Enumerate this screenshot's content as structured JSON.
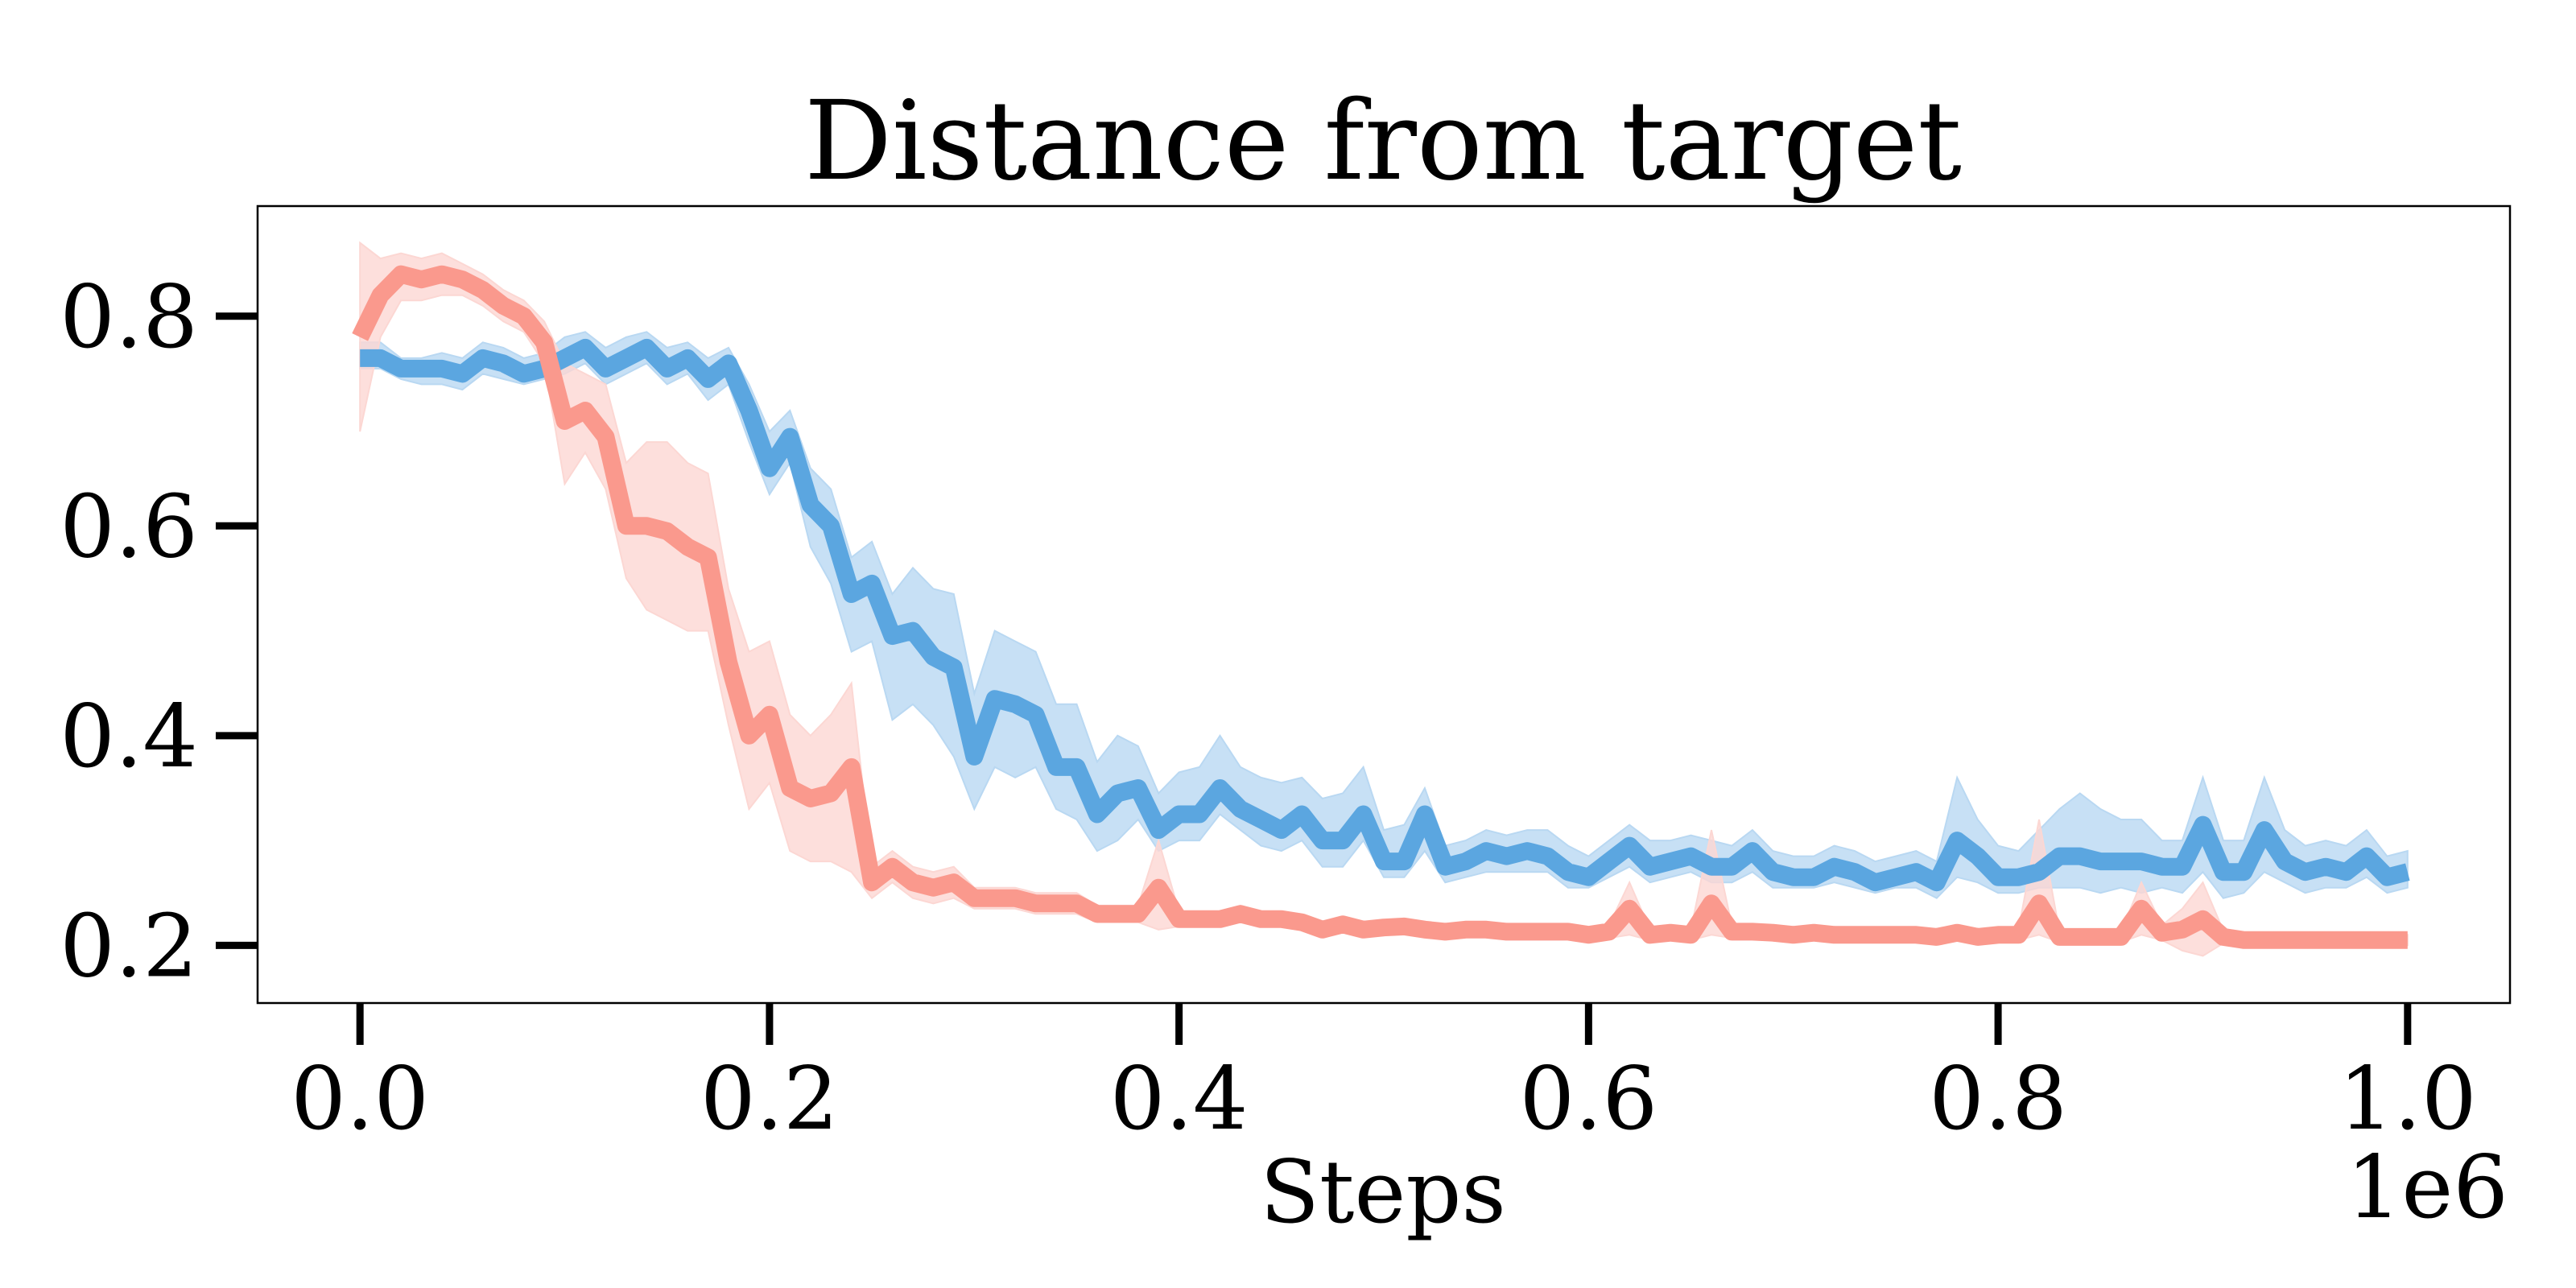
{
  "chart_data": {
    "type": "line",
    "title": "Distance from target",
    "xlabel": "Steps",
    "ylabel": "",
    "x_offset_text": "1e6",
    "xlim": [
      -0.05,
      1.05
    ],
    "ylim": [
      0.145,
      0.905
    ],
    "xticks": [
      0.0,
      0.2,
      0.4,
      0.6,
      0.8,
      1.0
    ],
    "xtick_labels": [
      "0.0",
      "0.2",
      "0.4",
      "0.6",
      "0.8",
      "1.0"
    ],
    "yticks": [
      0.2,
      0.4,
      0.6,
      0.8
    ],
    "ytick_labels": [
      "0.2",
      "0.4",
      "0.6",
      "0.8"
    ],
    "grid": false,
    "legend": "none",
    "series": [
      {
        "color": "#5ba6e0",
        "band_color": "#b9d8f2",
        "x": [
          0.0,
          0.01,
          0.02,
          0.03,
          0.04,
          0.05,
          0.06,
          0.07,
          0.08,
          0.09,
          0.1,
          0.11,
          0.12,
          0.13,
          0.14,
          0.15,
          0.16,
          0.17,
          0.18,
          0.19,
          0.2,
          0.21,
          0.22,
          0.23,
          0.24,
          0.25,
          0.26,
          0.27,
          0.28,
          0.29,
          0.3,
          0.31,
          0.32,
          0.33,
          0.34,
          0.35,
          0.36,
          0.37,
          0.38,
          0.39,
          0.4,
          0.41,
          0.42,
          0.43,
          0.44,
          0.45,
          0.46,
          0.47,
          0.48,
          0.49,
          0.5,
          0.51,
          0.52,
          0.53,
          0.54,
          0.55,
          0.56,
          0.57,
          0.58,
          0.59,
          0.6,
          0.61,
          0.62,
          0.63,
          0.64,
          0.65,
          0.66,
          0.67,
          0.68,
          0.69,
          0.7,
          0.71,
          0.72,
          0.73,
          0.74,
          0.75,
          0.76,
          0.77,
          0.78,
          0.79,
          0.8,
          0.81,
          0.82,
          0.83,
          0.84,
          0.85,
          0.86,
          0.87,
          0.88,
          0.89,
          0.9,
          0.91,
          0.92,
          0.93,
          0.94,
          0.95,
          0.96,
          0.97,
          0.98,
          0.99,
          1.0
        ],
        "y": [
          0.76,
          0.76,
          0.75,
          0.75,
          0.75,
          0.745,
          0.76,
          0.755,
          0.745,
          0.75,
          0.76,
          0.77,
          0.75,
          0.76,
          0.77,
          0.75,
          0.76,
          0.74,
          0.755,
          0.71,
          0.655,
          0.685,
          0.62,
          0.6,
          0.535,
          0.545,
          0.495,
          0.5,
          0.475,
          0.465,
          0.38,
          0.435,
          0.43,
          0.42,
          0.37,
          0.37,
          0.325,
          0.345,
          0.35,
          0.31,
          0.325,
          0.325,
          0.35,
          0.33,
          0.32,
          0.31,
          0.325,
          0.3,
          0.3,
          0.325,
          0.28,
          0.28,
          0.325,
          0.275,
          0.28,
          0.29,
          0.285,
          0.29,
          0.285,
          0.27,
          0.265,
          0.28,
          0.295,
          0.275,
          0.28,
          0.285,
          0.275,
          0.275,
          0.29,
          0.27,
          0.265,
          0.265,
          0.275,
          0.27,
          0.26,
          0.265,
          0.27,
          0.26,
          0.3,
          0.285,
          0.265,
          0.265,
          0.27,
          0.285,
          0.285,
          0.28,
          0.28,
          0.28,
          0.275,
          0.275,
          0.315,
          0.27,
          0.27,
          0.31,
          0.28,
          0.27,
          0.275,
          0.27,
          0.285,
          0.265,
          0.27
        ],
        "y_lower": [
          0.75,
          0.75,
          0.74,
          0.735,
          0.735,
          0.73,
          0.745,
          0.74,
          0.735,
          0.74,
          0.745,
          0.755,
          0.735,
          0.745,
          0.755,
          0.735,
          0.745,
          0.72,
          0.735,
          0.68,
          0.63,
          0.66,
          0.58,
          0.545,
          0.48,
          0.49,
          0.415,
          0.43,
          0.41,
          0.38,
          0.33,
          0.37,
          0.36,
          0.37,
          0.33,
          0.32,
          0.29,
          0.3,
          0.32,
          0.29,
          0.3,
          0.3,
          0.325,
          0.31,
          0.295,
          0.29,
          0.3,
          0.275,
          0.275,
          0.3,
          0.265,
          0.265,
          0.29,
          0.26,
          0.265,
          0.27,
          0.27,
          0.27,
          0.27,
          0.255,
          0.255,
          0.265,
          0.275,
          0.26,
          0.265,
          0.27,
          0.26,
          0.26,
          0.27,
          0.255,
          0.255,
          0.255,
          0.26,
          0.255,
          0.25,
          0.255,
          0.255,
          0.245,
          0.265,
          0.26,
          0.25,
          0.25,
          0.255,
          0.255,
          0.255,
          0.25,
          0.255,
          0.25,
          0.255,
          0.25,
          0.27,
          0.245,
          0.25,
          0.27,
          0.26,
          0.25,
          0.255,
          0.255,
          0.265,
          0.25,
          0.255
        ],
        "y_upper": [
          0.775,
          0.775,
          0.76,
          0.76,
          0.765,
          0.76,
          0.775,
          0.77,
          0.76,
          0.765,
          0.78,
          0.785,
          0.77,
          0.78,
          0.785,
          0.77,
          0.775,
          0.76,
          0.77,
          0.735,
          0.69,
          0.71,
          0.655,
          0.635,
          0.57,
          0.585,
          0.535,
          0.56,
          0.54,
          0.535,
          0.44,
          0.5,
          0.49,
          0.48,
          0.43,
          0.43,
          0.375,
          0.4,
          0.39,
          0.345,
          0.365,
          0.37,
          0.4,
          0.37,
          0.36,
          0.355,
          0.36,
          0.34,
          0.345,
          0.37,
          0.31,
          0.315,
          0.35,
          0.295,
          0.3,
          0.31,
          0.305,
          0.31,
          0.31,
          0.295,
          0.285,
          0.3,
          0.315,
          0.3,
          0.3,
          0.305,
          0.3,
          0.295,
          0.31,
          0.29,
          0.285,
          0.285,
          0.295,
          0.29,
          0.28,
          0.285,
          0.29,
          0.28,
          0.36,
          0.32,
          0.295,
          0.29,
          0.31,
          0.33,
          0.345,
          0.33,
          0.32,
          0.32,
          0.3,
          0.3,
          0.36,
          0.3,
          0.3,
          0.36,
          0.31,
          0.295,
          0.3,
          0.295,
          0.31,
          0.285,
          0.29
        ]
      },
      {
        "color": "#fa998d",
        "band_color": "#fcd7d3",
        "x": [
          0.0,
          0.01,
          0.02,
          0.03,
          0.04,
          0.05,
          0.06,
          0.07,
          0.08,
          0.09,
          0.1,
          0.11,
          0.12,
          0.13,
          0.14,
          0.15,
          0.16,
          0.17,
          0.18,
          0.19,
          0.2,
          0.21,
          0.22,
          0.23,
          0.24,
          0.25,
          0.26,
          0.27,
          0.28,
          0.29,
          0.3,
          0.31,
          0.32,
          0.33,
          0.34,
          0.35,
          0.36,
          0.37,
          0.38,
          0.39,
          0.4,
          0.41,
          0.42,
          0.43,
          0.44,
          0.45,
          0.46,
          0.47,
          0.48,
          0.49,
          0.5,
          0.51,
          0.52,
          0.53,
          0.54,
          0.55,
          0.56,
          0.57,
          0.58,
          0.59,
          0.6,
          0.61,
          0.62,
          0.63,
          0.64,
          0.65,
          0.66,
          0.67,
          0.68,
          0.69,
          0.7,
          0.71,
          0.72,
          0.73,
          0.74,
          0.75,
          0.76,
          0.77,
          0.78,
          0.79,
          0.8,
          0.81,
          0.82,
          0.83,
          0.84,
          0.85,
          0.86,
          0.87,
          0.88,
          0.89,
          0.9,
          0.91,
          0.92,
          0.93,
          0.94,
          0.95,
          0.96,
          0.97,
          0.98,
          0.99,
          1.0
        ],
        "y": [
          0.78,
          0.82,
          0.84,
          0.835,
          0.84,
          0.835,
          0.825,
          0.81,
          0.8,
          0.775,
          0.7,
          0.71,
          0.685,
          0.6,
          0.6,
          0.595,
          0.58,
          0.57,
          0.47,
          0.4,
          0.42,
          0.35,
          0.34,
          0.345,
          0.37,
          0.26,
          0.275,
          0.26,
          0.255,
          0.26,
          0.245,
          0.245,
          0.245,
          0.24,
          0.24,
          0.24,
          0.23,
          0.23,
          0.23,
          0.255,
          0.225,
          0.225,
          0.225,
          0.23,
          0.225,
          0.225,
          0.222,
          0.215,
          0.22,
          0.215,
          0.217,
          0.218,
          0.215,
          0.213,
          0.215,
          0.215,
          0.213,
          0.213,
          0.213,
          0.213,
          0.21,
          0.213,
          0.235,
          0.21,
          0.212,
          0.21,
          0.24,
          0.213,
          0.213,
          0.212,
          0.21,
          0.212,
          0.21,
          0.21,
          0.21,
          0.21,
          0.21,
          0.208,
          0.212,
          0.208,
          0.21,
          0.21,
          0.24,
          0.208,
          0.208,
          0.208,
          0.208,
          0.235,
          0.212,
          0.215,
          0.225,
          0.208,
          0.205,
          0.205,
          0.205,
          0.205,
          0.205,
          0.205,
          0.205,
          0.205,
          0.205
        ],
        "y_lower": [
          0.69,
          0.78,
          0.815,
          0.815,
          0.82,
          0.82,
          0.81,
          0.795,
          0.785,
          0.755,
          0.64,
          0.67,
          0.635,
          0.55,
          0.52,
          0.51,
          0.5,
          0.5,
          0.41,
          0.33,
          0.355,
          0.29,
          0.28,
          0.28,
          0.27,
          0.245,
          0.26,
          0.245,
          0.24,
          0.245,
          0.235,
          0.235,
          0.235,
          0.23,
          0.23,
          0.23,
          0.222,
          0.222,
          0.222,
          0.215,
          0.218,
          0.218,
          0.218,
          0.222,
          0.218,
          0.218,
          0.215,
          0.209,
          0.213,
          0.209,
          0.211,
          0.212,
          0.209,
          0.207,
          0.209,
          0.209,
          0.207,
          0.207,
          0.207,
          0.207,
          0.205,
          0.207,
          0.21,
          0.205,
          0.206,
          0.205,
          0.21,
          0.207,
          0.207,
          0.206,
          0.205,
          0.206,
          0.205,
          0.205,
          0.205,
          0.205,
          0.205,
          0.203,
          0.207,
          0.203,
          0.205,
          0.205,
          0.21,
          0.203,
          0.203,
          0.203,
          0.203,
          0.21,
          0.205,
          0.195,
          0.19,
          0.202,
          0.2,
          0.2,
          0.2,
          0.2,
          0.2,
          0.2,
          0.2,
          0.2,
          0.2
        ],
        "y_upper": [
          0.87,
          0.855,
          0.86,
          0.855,
          0.86,
          0.85,
          0.84,
          0.825,
          0.815,
          0.795,
          0.755,
          0.745,
          0.735,
          0.66,
          0.68,
          0.68,
          0.66,
          0.65,
          0.54,
          0.48,
          0.49,
          0.42,
          0.4,
          0.42,
          0.45,
          0.275,
          0.29,
          0.275,
          0.27,
          0.275,
          0.255,
          0.255,
          0.255,
          0.25,
          0.25,
          0.25,
          0.238,
          0.238,
          0.238,
          0.3,
          0.232,
          0.232,
          0.232,
          0.238,
          0.232,
          0.232,
          0.229,
          0.221,
          0.227,
          0.221,
          0.223,
          0.224,
          0.221,
          0.219,
          0.221,
          0.221,
          0.219,
          0.219,
          0.219,
          0.219,
          0.215,
          0.219,
          0.26,
          0.215,
          0.218,
          0.215,
          0.31,
          0.219,
          0.219,
          0.218,
          0.215,
          0.218,
          0.215,
          0.215,
          0.215,
          0.215,
          0.215,
          0.213,
          0.217,
          0.213,
          0.215,
          0.215,
          0.32,
          0.213,
          0.213,
          0.213,
          0.213,
          0.26,
          0.219,
          0.235,
          0.26,
          0.214,
          0.21,
          0.21,
          0.21,
          0.21,
          0.21,
          0.21,
          0.21,
          0.21,
          0.21
        ]
      }
    ]
  }
}
